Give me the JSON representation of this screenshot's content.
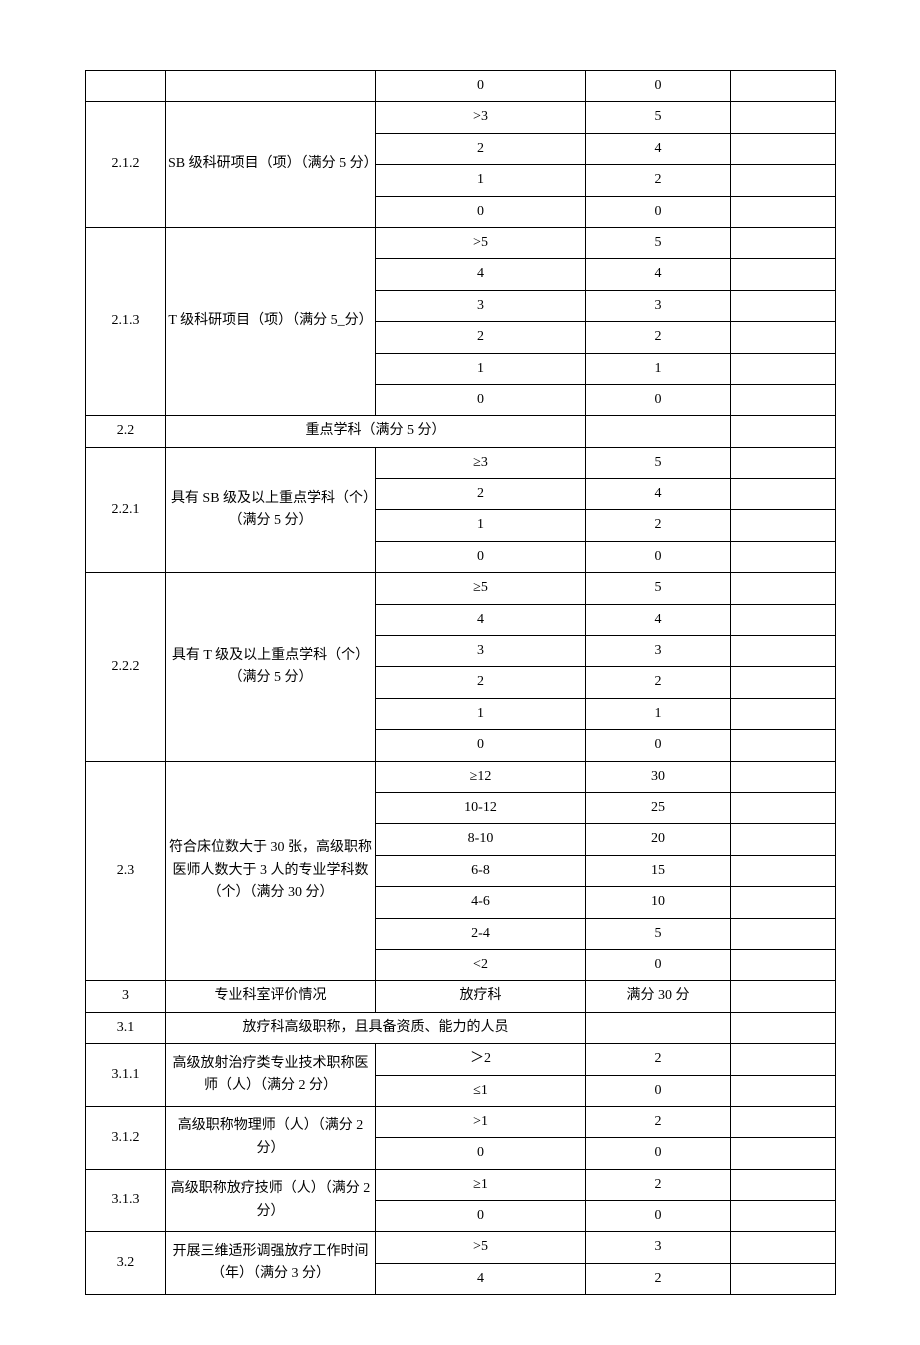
{
  "rows": [
    {
      "id": "",
      "desc": "",
      "crit": "0",
      "score": "0",
      "span_id": 1,
      "span_desc": 1
    },
    {
      "id": "2.1.2",
      "desc": "SB 级科研项目（项）（满分 5 分）",
      "crit": ">3",
      "score": "5",
      "span_id": 4,
      "span_desc": 4
    },
    {
      "id": "",
      "desc": "",
      "crit": "2",
      "score": "4"
    },
    {
      "id": "",
      "desc": "",
      "crit": "1",
      "score": "2"
    },
    {
      "id": "",
      "desc": "",
      "crit": "0",
      "score": "0"
    },
    {
      "id": "2.1.3",
      "desc": "T 级科研项目（项）（满分 5_分）",
      "crit": ">5",
      "score": "5",
      "span_id": 6,
      "span_desc": 6
    },
    {
      "id": "",
      "desc": "",
      "crit": "4",
      "score": "4"
    },
    {
      "id": "",
      "desc": "",
      "crit": "3",
      "score": "3"
    },
    {
      "id": "",
      "desc": "",
      "crit": "2",
      "score": "2"
    },
    {
      "id": "",
      "desc": "",
      "crit": "1",
      "score": "1"
    },
    {
      "id": "",
      "desc": "",
      "crit": "0",
      "score": "0"
    },
    {
      "id": "2.2",
      "desc": "重点学科（满分 5 分）",
      "crit": "",
      "score": "",
      "merge_desc_crit": true
    },
    {
      "id": "2.2.1",
      "desc": "具有 SB 级及以上重点学科（个）（满分 5 分）",
      "crit": "≥3",
      "score": "5",
      "span_id": 4,
      "span_desc": 4
    },
    {
      "id": "",
      "desc": "",
      "crit": "2",
      "score": "4"
    },
    {
      "id": "",
      "desc": "",
      "crit": "1",
      "score": "2"
    },
    {
      "id": "",
      "desc": "",
      "crit": "0",
      "score": "0"
    },
    {
      "id": "2.2.2",
      "desc": "具有 T 级及以上重点学科（个）（满分 5 分）",
      "crit": "≥5",
      "score": "5",
      "span_id": 6,
      "span_desc": 6
    },
    {
      "id": "",
      "desc": "",
      "crit": "4",
      "score": "4"
    },
    {
      "id": "",
      "desc": "",
      "crit": "3",
      "score": "3"
    },
    {
      "id": "",
      "desc": "",
      "crit": "2",
      "score": "2"
    },
    {
      "id": "",
      "desc": "",
      "crit": "1",
      "score": "1"
    },
    {
      "id": "",
      "desc": "",
      "crit": "0",
      "score": "0"
    },
    {
      "id": "2.3",
      "desc": "符合床位数大于 30 张，高级职称医师人数大于 3 人的专业学科数（个）（满分 30 分）",
      "crit": "≥12",
      "score": "30",
      "span_id": 7,
      "span_desc": 7
    },
    {
      "id": "",
      "desc": "",
      "crit": "10-12",
      "score": "25"
    },
    {
      "id": "",
      "desc": "",
      "crit": "8-10",
      "score": "20"
    },
    {
      "id": "",
      "desc": "",
      "crit": "6-8",
      "score": "15"
    },
    {
      "id": "",
      "desc": "",
      "crit": "4-6",
      "score": "10"
    },
    {
      "id": "",
      "desc": "",
      "crit": "2-4",
      "score": "5"
    },
    {
      "id": "",
      "desc": "",
      "crit": "<2",
      "score": "0"
    },
    {
      "id": "3",
      "desc": "专业科室评价情况",
      "crit": "放疗科",
      "score": "满分 30 分"
    },
    {
      "id": "3.1",
      "desc": "放疗科高级职称，且具备资质、能力的人员",
      "crit": "",
      "score": "",
      "merge_desc_crit": true
    },
    {
      "id": "3.1.1",
      "desc": "高级放射治疗类专业技术职称医师（人）（满分 2 分）",
      "crit": "＞2",
      "score": "2",
      "span_id": 2,
      "span_desc": 2
    },
    {
      "id": "",
      "desc": "",
      "crit": "≤1",
      "score": "0"
    },
    {
      "id": "3.1.2",
      "desc": "高级职称物理师（人）（满分 2 分）",
      "crit": ">1",
      "score": "2",
      "span_id": 2,
      "span_desc": 2
    },
    {
      "id": "",
      "desc": "",
      "crit": "0",
      "score": "0"
    },
    {
      "id": "3.1.3",
      "desc": "高级职称放疗技师（人）（满分 2 分）",
      "crit": "≥1",
      "score": "2",
      "span_id": 2,
      "span_desc": 2
    },
    {
      "id": "",
      "desc": "",
      "crit": "0",
      "score": "0"
    },
    {
      "id": "3.2",
      "desc": "开展三维适形调强放疗工作时间（年）（满分 3 分）",
      "crit": ">5",
      "score": "3",
      "span_id": 2,
      "span_desc": 2
    },
    {
      "id": "",
      "desc": "",
      "crit": "4",
      "score": "2"
    }
  ],
  "columns": {
    "c1_width": 80,
    "c2_width": 210,
    "c3_width": 210,
    "c4_width": 145,
    "c5_width": 105
  },
  "style": {
    "font_family": "SimSun",
    "font_size_pt": 10.5,
    "border_color": "#000000",
    "background_color": "#ffffff",
    "text_color": "#000000"
  }
}
